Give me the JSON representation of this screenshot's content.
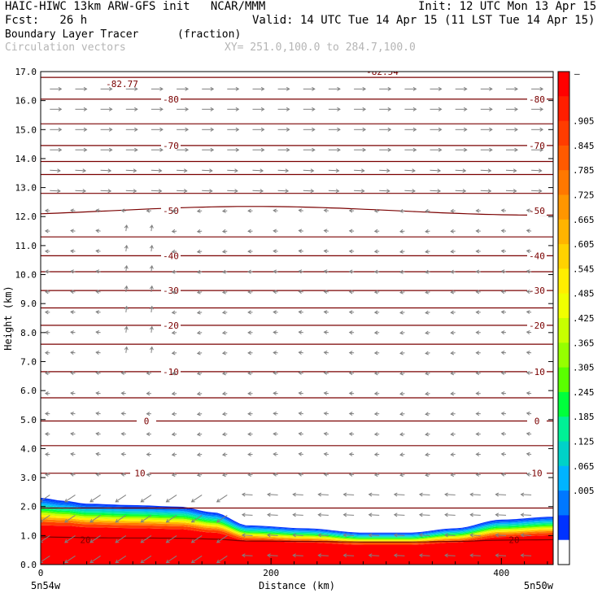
{
  "header": {
    "model_line": "HAIC-HIWC 13km ARW-GFS init   NCAR/MMM",
    "init_line": "Init: 12 UTC Mon 13 Apr 15",
    "fcst_line": "Fcst:   26 h",
    "valid_line": "Valid: 14 UTC Tue 14 Apr 15 (11 LST Tue 14 Apr 15)",
    "field_name": "Boundary Layer Tracer",
    "field_units": "(fraction)",
    "vector_label": "Circulation vectors",
    "xy_label": "XY= 251.0,100.0 to 284.7,100.0"
  },
  "colors": {
    "contour": "#7a0000",
    "vector": "#808080",
    "axis": "#000000"
  },
  "colorbar": {
    "labels": [
      ".905",
      ".845",
      ".785",
      ".725",
      ".665",
      ".605",
      ".545",
      ".485",
      ".425",
      ".365",
      ".305",
      ".245",
      ".185",
      ".125",
      ".065",
      ".005"
    ],
    "top_label": "–",
    "colors": [
      "#ff0000",
      "#ff1e00",
      "#ff3c00",
      "#ff5a00",
      "#ff7800",
      "#ff9600",
      "#ffb400",
      "#ffd200",
      "#ffee00",
      "#f0ff00",
      "#c8ff00",
      "#96ff00",
      "#5aff00",
      "#00ff3c",
      "#00f096",
      "#00d2c8",
      "#00b4ff",
      "#0078ff",
      "#0032ff",
      "#ffffff"
    ]
  },
  "chart_data": {
    "type": "cross-section",
    "xlabel": "Distance (km)",
    "ylabel": "Height (km)",
    "xlim": [
      0,
      445
    ],
    "ylim": [
      0,
      17
    ],
    "x_ticks": [
      0,
      200,
      400
    ],
    "y_ticks": [
      "0.0",
      "1.0",
      "2.0",
      "3.0",
      "4.0",
      "5.0",
      "6.0",
      "7.0",
      "8.0",
      "9.0",
      "10.0",
      "11.0",
      "12.0",
      "13.0",
      "14.0",
      "15.0",
      "16.0",
      "17.0"
    ],
    "x_end_labels": [
      "5n54w",
      "5n50w"
    ],
    "extra_labels": [
      "-82.77",
      "-82.54"
    ],
    "contour_labels": [
      {
        "text": "-80",
        "height": 16.05
      },
      {
        "text": "-70",
        "height": 14.45
      },
      {
        "text": "-50",
        "height": 12.2
      },
      {
        "text": "-40",
        "height": 10.65
      },
      {
        "text": "-30",
        "height": 9.45
      },
      {
        "text": "-20",
        "height": 8.25
      },
      {
        "text": "-10",
        "height": 6.65
      },
      {
        "text": "0",
        "height": 4.95
      },
      {
        "text": "10",
        "height": 3.15
      },
      {
        "text": "20",
        "height": 0.85
      }
    ],
    "isotherm_heights": [
      0.85,
      1.95,
      3.15,
      4.1,
      4.95,
      5.75,
      6.65,
      7.6,
      8.25,
      8.85,
      9.45,
      10.1,
      10.65,
      11.3,
      12.2,
      12.8,
      13.45,
      13.9,
      14.45,
      15.2,
      16.05,
      16.8
    ],
    "tracer_boundary_heights": {
      "distance_km": [
        0,
        20,
        40,
        80,
        120,
        150,
        180,
        230,
        280,
        320,
        360,
        400,
        445
      ],
      "top_km": [
        2.3,
        2.2,
        2.1,
        2.05,
        2.0,
        1.8,
        1.35,
        1.25,
        1.1,
        1.1,
        1.25,
        1.55,
        1.65
      ]
    }
  }
}
